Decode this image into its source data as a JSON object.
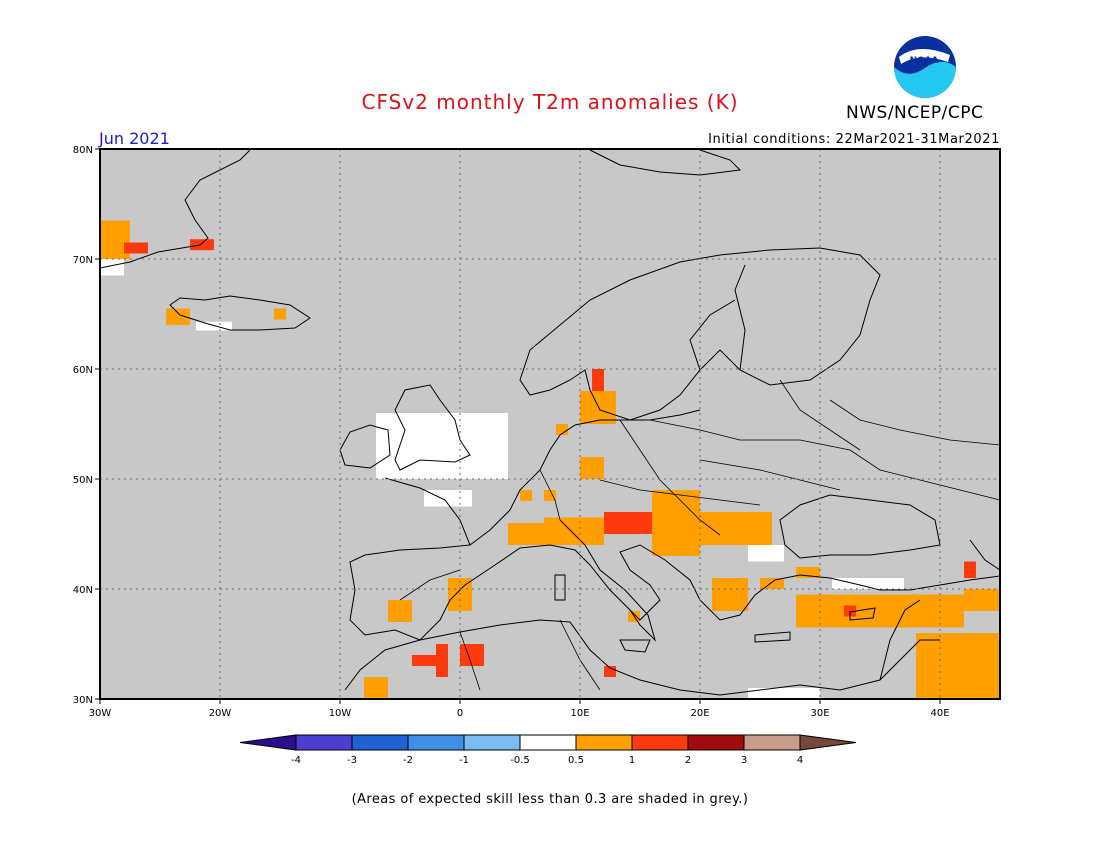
{
  "header": {
    "title": "CFSv2 monthly T2m anomalies (K)",
    "agency": "NWS/NCEP/CPC",
    "valid_month": "Jun 2021",
    "initial_conditions": "Initial conditions: 22Mar2021-31Mar2021",
    "logo_text": "NOAA"
  },
  "footer": {
    "note": "(Areas of expected skill less than 0.3 are shaded in grey.)"
  },
  "map": {
    "projection": "lat-lon",
    "lon_range": [
      -30,
      45
    ],
    "lat_range": [
      30,
      80
    ],
    "lon_ticks": [
      {
        "value": -30,
        "label": "30W"
      },
      {
        "value": -20,
        "label": "20W"
      },
      {
        "value": -10,
        "label": "10W"
      },
      {
        "value": 0,
        "label": "0"
      },
      {
        "value": 10,
        "label": "10E"
      },
      {
        "value": 20,
        "label": "20E"
      },
      {
        "value": 30,
        "label": "30E"
      },
      {
        "value": 40,
        "label": "40E"
      }
    ],
    "lat_ticks": [
      {
        "value": 30,
        "label": "30N"
      },
      {
        "value": 40,
        "label": "40N"
      },
      {
        "value": 50,
        "label": "50N"
      },
      {
        "value": 60,
        "label": "60N"
      },
      {
        "value": 70,
        "label": "70N"
      },
      {
        "value": 80,
        "label": "80N"
      }
    ],
    "grid": "dotted",
    "background_color": "#c8c8c8",
    "anomaly_cells": [
      {
        "lon": -30,
        "lat": 70,
        "w": 2.5,
        "h": 3.5,
        "cat": "0.5-1"
      },
      {
        "lon": -28,
        "lat": 70.5,
        "w": 2,
        "h": 1,
        "cat": "1-2"
      },
      {
        "lon": -30,
        "lat": 68.5,
        "w": 2,
        "h": 1.5,
        "cat": "-0.5-0.5"
      },
      {
        "lon": -22.5,
        "lat": 70.8,
        "w": 2,
        "h": 1,
        "cat": "1-2"
      },
      {
        "lon": -24.5,
        "lat": 64,
        "w": 2,
        "h": 1.5,
        "cat": "0.5-1"
      },
      {
        "lon": -15.5,
        "lat": 64.5,
        "w": 1,
        "h": 1,
        "cat": "0.5-1"
      },
      {
        "lon": -22,
        "lat": 63.5,
        "w": 3,
        "h": 0.8,
        "cat": "-0.5-0.5"
      },
      {
        "lon": -7,
        "lat": 50,
        "w": 11,
        "h": 6,
        "cat": "-0.5-0.5"
      },
      {
        "lon": 8,
        "lat": 54,
        "w": 1,
        "h": 1,
        "cat": "0.5-1"
      },
      {
        "lon": 10,
        "lat": 55,
        "w": 3,
        "h": 3,
        "cat": "0.5-1"
      },
      {
        "lon": 11,
        "lat": 58,
        "w": 1,
        "h": 2,
        "cat": "1-2"
      },
      {
        "lon": 10,
        "lat": 50,
        "w": 2,
        "h": 2,
        "cat": "0.5-1"
      },
      {
        "lon": 5,
        "lat": 48,
        "w": 1,
        "h": 1,
        "cat": "0.5-1"
      },
      {
        "lon": 7,
        "lat": 48,
        "w": 1,
        "h": 1,
        "cat": "0.5-1"
      },
      {
        "lon": -3,
        "lat": 47.5,
        "w": 4,
        "h": 1.5,
        "cat": "-0.5-0.5"
      },
      {
        "lon": 4,
        "lat": 44,
        "w": 5,
        "h": 2,
        "cat": "0.5-1"
      },
      {
        "lon": 7,
        "lat": 44,
        "w": 5,
        "h": 2.5,
        "cat": "0.5-1"
      },
      {
        "lon": 12,
        "lat": 45,
        "w": 4,
        "h": 2,
        "cat": "1-2"
      },
      {
        "lon": 16,
        "lat": 43,
        "w": 4,
        "h": 6,
        "cat": "0.5-1"
      },
      {
        "lon": 20,
        "lat": 44,
        "w": 6,
        "h": 3,
        "cat": "0.5-1"
      },
      {
        "lon": 24,
        "lat": 42.5,
        "w": 3,
        "h": 1.5,
        "cat": "-0.5-0.5"
      },
      {
        "lon": 21,
        "lat": 38,
        "w": 3,
        "h": 3,
        "cat": "0.5-1"
      },
      {
        "lon": 25,
        "lat": 40,
        "w": 2,
        "h": 1,
        "cat": "0.5-1"
      },
      {
        "lon": 28,
        "lat": 41,
        "w": 2,
        "h": 1,
        "cat": "0.5-1"
      },
      {
        "lon": 28,
        "lat": 36.5,
        "w": 14,
        "h": 3,
        "cat": "0.5-1"
      },
      {
        "lon": 31,
        "lat": 40,
        "w": 6,
        "h": 1,
        "cat": "-0.5-0.5"
      },
      {
        "lon": 32,
        "lat": 37.5,
        "w": 1,
        "h": 1,
        "cat": "1-2"
      },
      {
        "lon": 38,
        "lat": 30,
        "w": 7,
        "h": 6,
        "cat": "0.5-1"
      },
      {
        "lon": 42,
        "lat": 41,
        "w": 1,
        "h": 1.5,
        "cat": "1-2"
      },
      {
        "lon": 42,
        "lat": 38,
        "w": 3,
        "h": 2,
        "cat": "0.5-1"
      },
      {
        "lon": -6,
        "lat": 37,
        "w": 2,
        "h": 2,
        "cat": "0.5-1"
      },
      {
        "lon": -1,
        "lat": 38,
        "w": 2,
        "h": 3,
        "cat": "0.5-1"
      },
      {
        "lon": -4,
        "lat": 33,
        "w": 3,
        "h": 1,
        "cat": "1-2"
      },
      {
        "lon": -2,
        "lat": 32,
        "w": 1,
        "h": 3,
        "cat": "1-2"
      },
      {
        "lon": 0,
        "lat": 33,
        "w": 2,
        "h": 2,
        "cat": "1-2"
      },
      {
        "lon": -8,
        "lat": 30,
        "w": 2,
        "h": 2,
        "cat": "0.5-1"
      },
      {
        "lon": 12,
        "lat": 32,
        "w": 1,
        "h": 1,
        "cat": "1-2"
      },
      {
        "lon": 14,
        "lat": 37,
        "w": 1,
        "h": 1,
        "cat": "0.5-1"
      },
      {
        "lon": 24,
        "lat": 30,
        "w": 6,
        "h": 1,
        "cat": "-0.5-0.5"
      }
    ]
  },
  "colorbar": {
    "levels": [
      "-4",
      "-3",
      "-2",
      "-1",
      "-0.5",
      "0.5",
      "1",
      "2",
      "3",
      "4"
    ],
    "colors": [
      "#2a0e8e",
      "#4b3fd2",
      "#2062d4",
      "#3d8fe8",
      "#78bcf2",
      "#ffffff",
      "#ff9f00",
      "#ff3a0e",
      "#a00c0c",
      "#c89c8a",
      "#74483a"
    ]
  }
}
